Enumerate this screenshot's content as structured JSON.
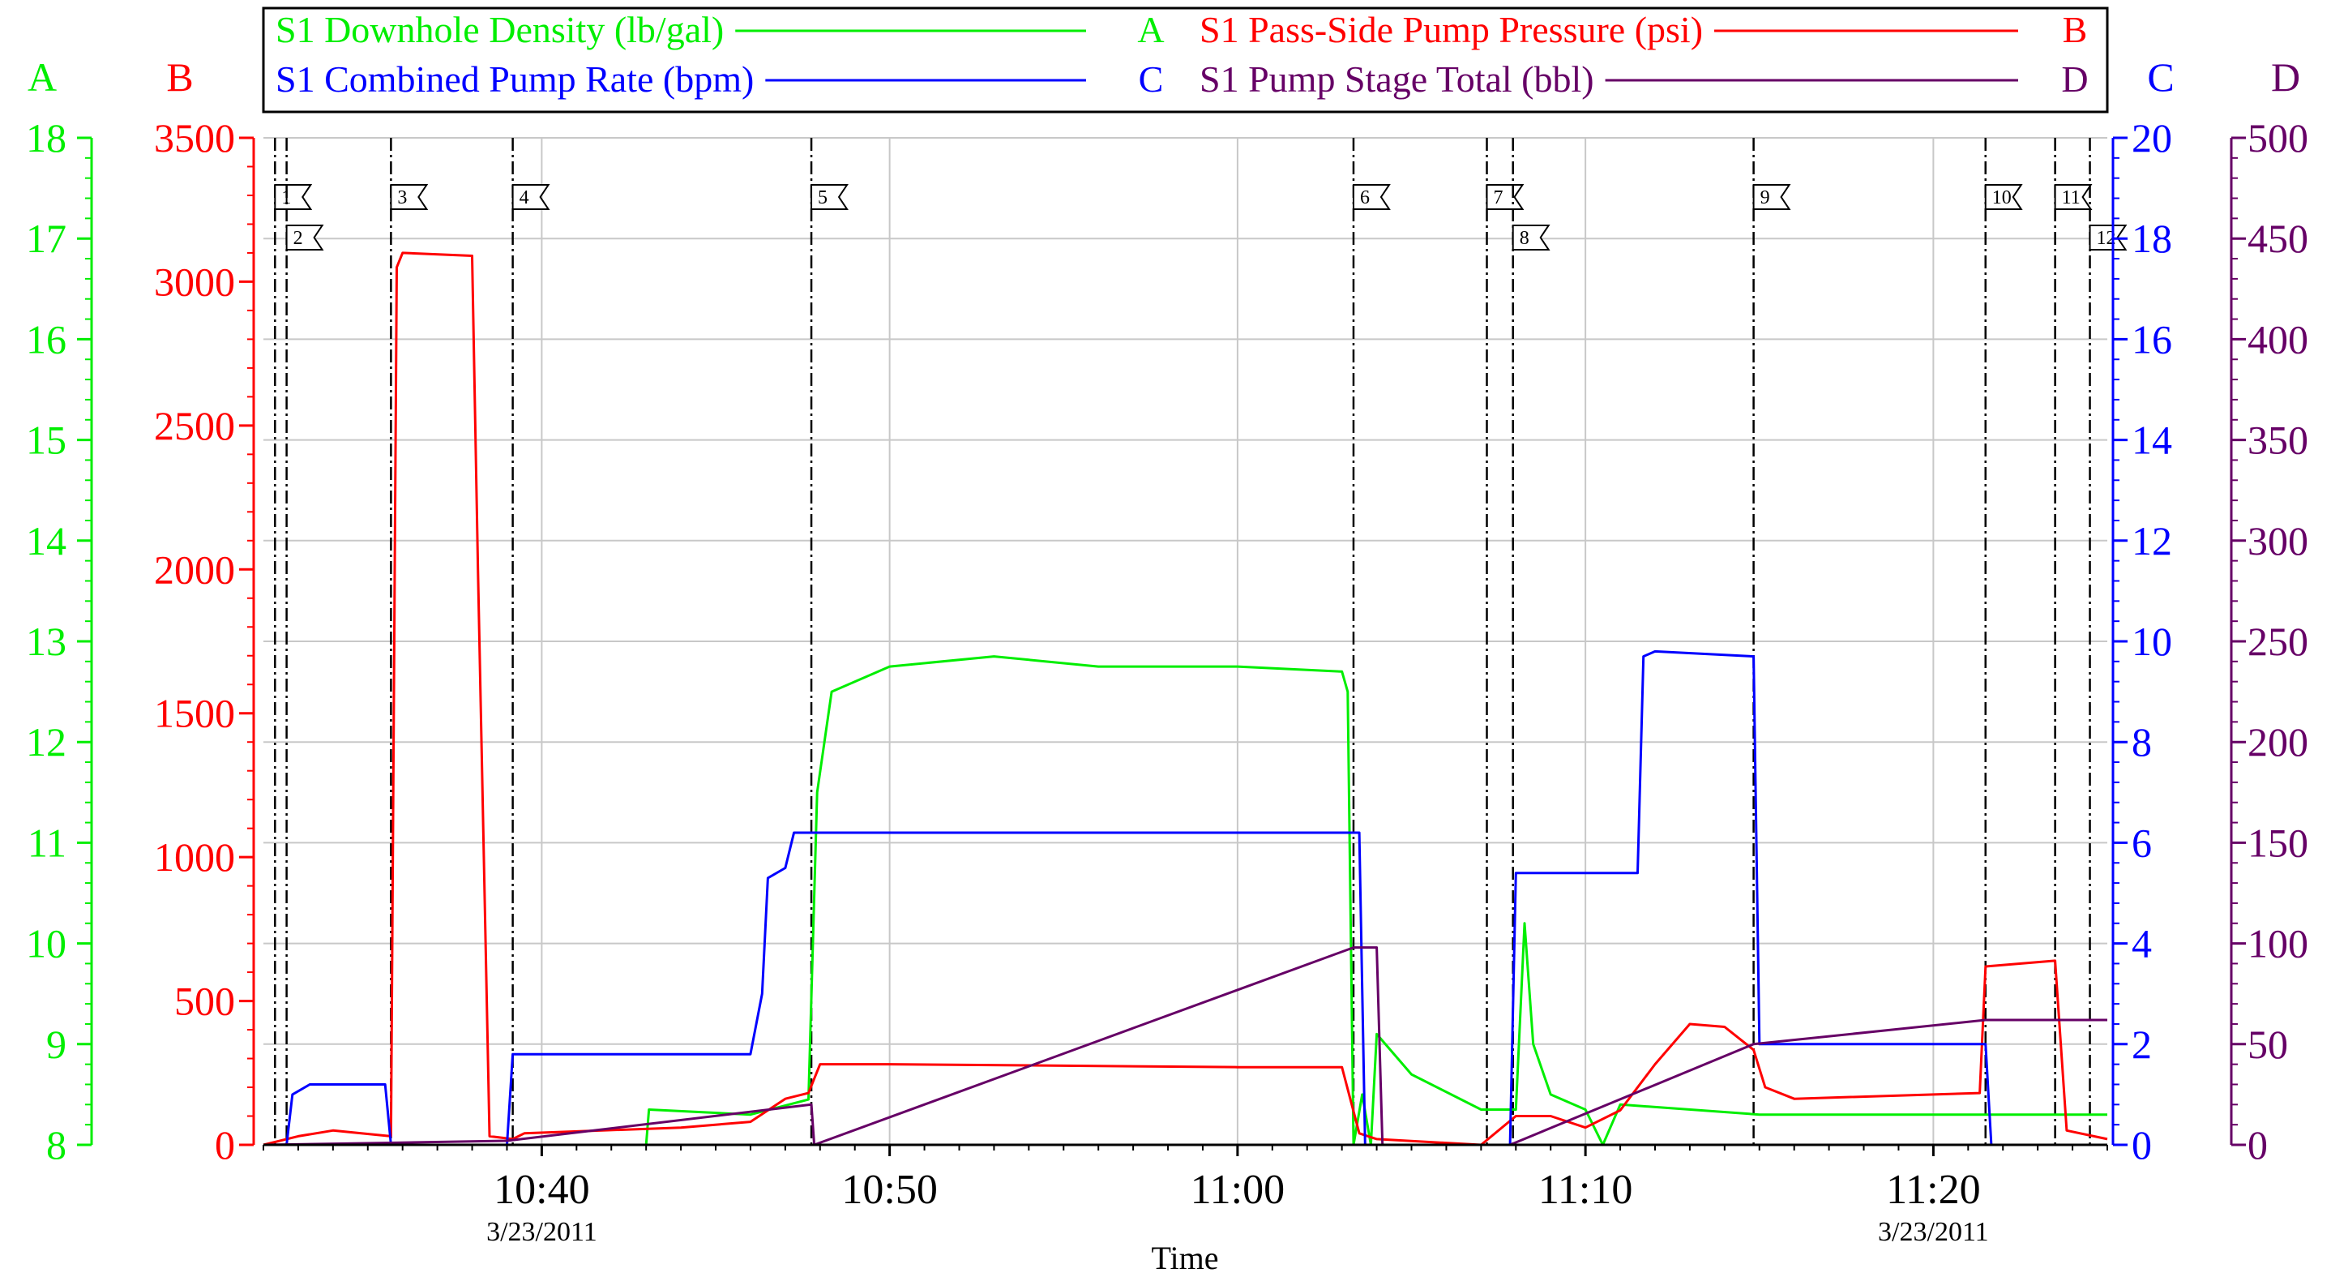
{
  "chart_data": {
    "type": "line",
    "xlabel": "Time",
    "x_range": [
      "10:32:00",
      "11:25:00"
    ],
    "x_ticks": [
      {
        "t": "10:40:00",
        "label": "10:40",
        "date": "3/23/2011"
      },
      {
        "t": "10:50:00",
        "label": "10:50",
        "date": ""
      },
      {
        "t": "11:00:00",
        "label": "11:00",
        "date": ""
      },
      {
        "t": "11:10:00",
        "label": "11:10",
        "date": ""
      },
      {
        "t": "11:20:00",
        "label": "11:20",
        "date": "3/23/2011"
      }
    ],
    "grid": true,
    "legend_placement": "top",
    "axes": [
      {
        "id": "A",
        "letter": "A",
        "side": "left",
        "color": "#00ee00",
        "range": [
          8,
          18
        ],
        "ticks": [
          8,
          9,
          10,
          11,
          12,
          13,
          14,
          15,
          16,
          17,
          18
        ]
      },
      {
        "id": "B",
        "letter": "B",
        "side": "left",
        "color": "#ff0000",
        "range": [
          0,
          3500
        ],
        "ticks": [
          0,
          500,
          1000,
          1500,
          2000,
          2500,
          3000,
          3500
        ]
      },
      {
        "id": "C",
        "letter": "C",
        "side": "right",
        "color": "#0000ff",
        "range": [
          0,
          20
        ],
        "ticks": [
          0,
          2,
          4,
          6,
          8,
          10,
          12,
          14,
          16,
          18,
          20
        ]
      },
      {
        "id": "D",
        "letter": "D",
        "side": "right",
        "color": "#660066",
        "range": [
          0,
          500
        ],
        "ticks": [
          0,
          50,
          100,
          150,
          200,
          250,
          300,
          350,
          400,
          450,
          500
        ]
      }
    ],
    "legend": [
      {
        "name": "S1 Downhole Density (lb/gal)",
        "letter": "A",
        "color": "#00ee00"
      },
      {
        "name": "S1 Pass-Side Pump Pressure (psi)",
        "letter": "B",
        "color": "#ff0000"
      },
      {
        "name": "S1 Combined Pump Rate (bpm)",
        "letter": "C",
        "color": "#0000ff"
      },
      {
        "name": "S1 Pump Stage Total (bbl)",
        "letter": "D",
        "color": "#660066"
      }
    ],
    "events": [
      {
        "id": "1",
        "t": "10:32:20",
        "row": 1
      },
      {
        "id": "2",
        "t": "10:32:40",
        "row": 2
      },
      {
        "id": "3",
        "t": "10:35:40",
        "row": 1
      },
      {
        "id": "4",
        "t": "10:39:10",
        "row": 1
      },
      {
        "id": "5",
        "t": "10:47:45",
        "row": 1
      },
      {
        "id": "6",
        "t": "11:03:20",
        "row": 1
      },
      {
        "id": "7",
        "t": "11:07:10",
        "row": 1
      },
      {
        "id": "8",
        "t": "11:07:55",
        "row": 2
      },
      {
        "id": "9",
        "t": "11:14:50",
        "row": 1
      },
      {
        "id": "10",
        "t": "11:21:30",
        "row": 1
      },
      {
        "id": "11",
        "t": "11:23:30",
        "row": 1
      },
      {
        "id": "12",
        "t": "11:24:30",
        "row": 2
      }
    ],
    "series": [
      {
        "name": "S1 Downhole Density (lb/gal)",
        "axis": "A",
        "color": "#00ee00",
        "points": [
          [
            "10:32:00",
            8.0
          ],
          [
            "10:43:00",
            8.0
          ],
          [
            "10:43:05",
            8.35
          ],
          [
            "10:46:00",
            8.3
          ],
          [
            "10:47:40",
            8.45
          ],
          [
            "10:47:55",
            11.5
          ],
          [
            "10:48:20",
            12.5
          ],
          [
            "10:50:00",
            12.75
          ],
          [
            "10:53:00",
            12.85
          ],
          [
            "10:56:00",
            12.75
          ],
          [
            "11:00:00",
            12.75
          ],
          [
            "11:03:00",
            12.7
          ],
          [
            "11:03:10",
            12.5
          ],
          [
            "11:03:20",
            8.0
          ],
          [
            "11:03:35",
            8.5
          ],
          [
            "11:03:50",
            8.0
          ],
          [
            "11:04:00",
            9.1
          ],
          [
            "11:05:00",
            8.7
          ],
          [
            "11:07:00",
            8.35
          ],
          [
            "11:08:00",
            8.35
          ],
          [
            "11:08:15",
            10.2
          ],
          [
            "11:08:30",
            9.0
          ],
          [
            "11:09:00",
            8.5
          ],
          [
            "11:10:00",
            8.35
          ],
          [
            "11:10:30",
            8.0
          ],
          [
            "11:11:00",
            8.4
          ],
          [
            "11:15:00",
            8.3
          ],
          [
            "11:20:00",
            8.3
          ],
          [
            "11:25:00",
            8.3
          ]
        ]
      },
      {
        "name": "S1 Pass-Side Pump Pressure (psi)",
        "axis": "B",
        "color": "#ff0000",
        "points": [
          [
            "10:32:00",
            0
          ],
          [
            "10:33:00",
            30
          ],
          [
            "10:34:00",
            50
          ],
          [
            "10:35:40",
            30
          ],
          [
            "10:35:50",
            3050
          ],
          [
            "10:36:00",
            3100
          ],
          [
            "10:38:00",
            3090
          ],
          [
            "10:38:10",
            2000
          ],
          [
            "10:38:30",
            30
          ],
          [
            "10:39:10",
            20
          ],
          [
            "10:39:30",
            40
          ],
          [
            "10:44:00",
            60
          ],
          [
            "10:46:00",
            80
          ],
          [
            "10:47:00",
            160
          ],
          [
            "10:47:40",
            180
          ],
          [
            "10:48:00",
            280
          ],
          [
            "10:50:00",
            280
          ],
          [
            "11:00:00",
            270
          ],
          [
            "11:03:00",
            270
          ],
          [
            "11:03:30",
            40
          ],
          [
            "11:04:00",
            20
          ],
          [
            "11:07:00",
            0
          ],
          [
            "11:08:00",
            100
          ],
          [
            "11:09:00",
            100
          ],
          [
            "11:10:00",
            60
          ],
          [
            "11:11:00",
            120
          ],
          [
            "11:12:00",
            280
          ],
          [
            "11:13:00",
            420
          ],
          [
            "11:14:00",
            410
          ],
          [
            "11:14:50",
            330
          ],
          [
            "11:15:10",
            200
          ],
          [
            "11:16:00",
            160
          ],
          [
            "11:21:20",
            180
          ],
          [
            "11:21:30",
            620
          ],
          [
            "11:23:30",
            640
          ],
          [
            "11:23:50",
            50
          ],
          [
            "11:25:00",
            20
          ]
        ]
      },
      {
        "name": "S1 Combined Pump Rate (bpm)",
        "axis": "C",
        "color": "#0000ff",
        "points": [
          [
            "10:32:00",
            0
          ],
          [
            "10:32:40",
            0
          ],
          [
            "10:32:50",
            1.0
          ],
          [
            "10:33:20",
            1.2
          ],
          [
            "10:35:30",
            1.2
          ],
          [
            "10:35:40",
            0
          ],
          [
            "10:39:00",
            0
          ],
          [
            "10:39:10",
            1.8
          ],
          [
            "10:46:00",
            1.8
          ],
          [
            "10:46:20",
            3.0
          ],
          [
            "10:46:30",
            5.3
          ],
          [
            "10:47:00",
            5.5
          ],
          [
            "10:47:15",
            6.2
          ],
          [
            "10:50:00",
            6.2
          ],
          [
            "11:00:00",
            6.2
          ],
          [
            "11:03:30",
            6.2
          ],
          [
            "11:03:40",
            0
          ],
          [
            "11:07:50",
            0
          ],
          [
            "11:08:00",
            5.4
          ],
          [
            "11:11:30",
            5.4
          ],
          [
            "11:11:40",
            9.7
          ],
          [
            "11:12:00",
            9.8
          ],
          [
            "11:14:50",
            9.7
          ],
          [
            "11:15:00",
            2.0
          ],
          [
            "11:21:30",
            2.0
          ],
          [
            "11:21:40",
            0
          ],
          [
            "11:25:00",
            0
          ]
        ]
      },
      {
        "name": "S1 Pump Stage Total (bbl)",
        "axis": "D",
        "color": "#660066",
        "points": [
          [
            "10:32:00",
            0
          ],
          [
            "10:35:40",
            1
          ],
          [
            "10:39:00",
            2
          ],
          [
            "10:47:45",
            20
          ],
          [
            "10:47:50",
            0
          ],
          [
            "11:03:20",
            98
          ],
          [
            "11:04:00",
            98
          ],
          [
            "11:04:10",
            0
          ],
          [
            "11:07:50",
            0
          ],
          [
            "11:14:50",
            50
          ],
          [
            "11:21:30",
            62
          ],
          [
            "11:25:00",
            62
          ]
        ]
      }
    ]
  }
}
